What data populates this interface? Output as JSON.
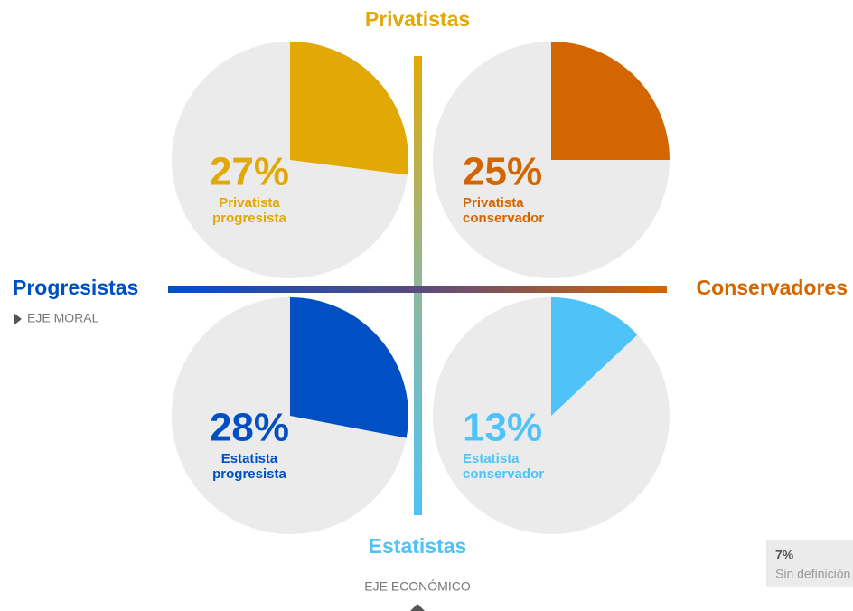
{
  "axes": {
    "top": "Privatistas",
    "bottom": "Estatistas",
    "left": "Progresistas",
    "right": "Conservadores",
    "moral": "EJE MORAL",
    "economic": "EJE ECONÓMICO"
  },
  "chart_data": [
    {
      "type": "pie",
      "values": [
        27
      ],
      "value_labels": [
        "27%"
      ],
      "label_lines": [
        "Privatista",
        "progresista"
      ],
      "color": "#e2a806"
    },
    {
      "type": "pie",
      "values": [
        25
      ],
      "value_labels": [
        "25%"
      ],
      "label_lines": [
        "Privatista",
        "conservador"
      ],
      "color": "#d46602"
    },
    {
      "type": "pie",
      "values": [
        28
      ],
      "value_labels": [
        "28%"
      ],
      "label_lines": [
        "Estatista",
        "progresista"
      ],
      "color": "#0050c3"
    },
    {
      "type": "pie",
      "values": [
        13
      ],
      "value_labels": [
        "13%"
      ],
      "label_lines": [
        "Estatista",
        "conservador"
      ],
      "color": "#4fc3f7"
    }
  ],
  "undefined": {
    "values": [
      7
    ],
    "value_labels": [
      "7%"
    ],
    "label": "Sin definición"
  }
}
